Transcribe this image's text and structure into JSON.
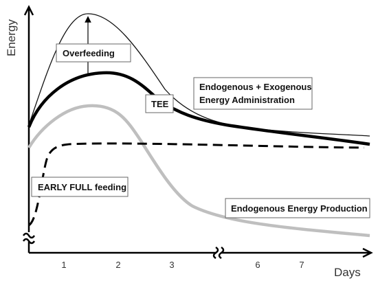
{
  "axes": {
    "y_label": "Energy",
    "x_label": "Days",
    "ticks": [
      "1",
      "2",
      "3",
      "6",
      "7"
    ]
  },
  "labels": {
    "overfeeding": "Overfeeding",
    "tee": "TEE",
    "exo_line1": "Endogenous + Exogenous",
    "exo_line2": "Energy Administration",
    "early_full": "EARLY FULL feeding",
    "endo_production": "Endogenous Energy Production"
  },
  "colors": {
    "exogenous_curve": "#111111",
    "tee_curve": "#000000",
    "endogenous_curve": "#bfbfbf",
    "early_feeding_curve": "#000000",
    "axis": "#000000"
  }
}
